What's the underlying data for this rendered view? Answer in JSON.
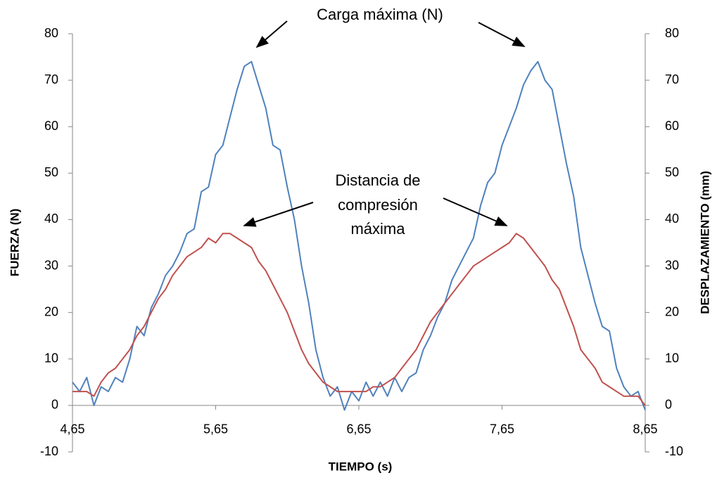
{
  "chart_data": {
    "type": "line",
    "xlabel": "TIEMPO (s)",
    "ylabel": "FUERZA (N)",
    "y2label": "DESPLAZAMIENTO (mm)",
    "annotations": [
      {
        "text": "Carga máxima (N)"
      },
      {
        "lines": [
          "Distancia de",
          "compresión",
          "máxima"
        ]
      }
    ],
    "x": [
      4.65,
      4.7,
      4.75,
      4.8,
      4.85,
      4.9,
      4.95,
      5.0,
      5.05,
      5.1,
      5.15,
      5.2,
      5.25,
      5.3,
      5.35,
      5.4,
      5.45,
      5.5,
      5.55,
      5.6,
      5.65,
      5.7,
      5.75,
      5.8,
      5.85,
      5.9,
      5.95,
      6.0,
      6.05,
      6.1,
      6.15,
      6.2,
      6.25,
      6.3,
      6.35,
      6.4,
      6.45,
      6.5,
      6.55,
      6.6,
      6.65,
      6.7,
      6.75,
      6.8,
      6.85,
      6.9,
      6.95,
      7.0,
      7.05,
      7.1,
      7.15,
      7.2,
      7.25,
      7.3,
      7.35,
      7.4,
      7.45,
      7.5,
      7.55,
      7.6,
      7.65,
      7.7,
      7.75,
      7.8,
      7.85,
      7.9,
      7.95,
      8.0,
      8.05,
      8.1,
      8.15,
      8.2,
      8.25,
      8.3,
      8.35,
      8.4,
      8.45,
      8.5,
      8.55,
      8.6,
      8.65
    ],
    "series": [
      {
        "color": "#4f81bd",
        "values": [
          5,
          3,
          6,
          0,
          4,
          3,
          6,
          5,
          10,
          17,
          15,
          21,
          24,
          28,
          30,
          33,
          37,
          38,
          46,
          47,
          54,
          56,
          62,
          68,
          73,
          74,
          69,
          64,
          56,
          55,
          47,
          40,
          30,
          22,
          12,
          6,
          2,
          4,
          -1,
          3,
          1,
          5,
          2,
          5,
          2,
          6,
          3,
          6,
          7,
          12,
          15,
          19,
          22,
          27,
          30,
          33,
          36,
          43,
          48,
          50,
          56,
          60,
          64,
          69,
          72,
          74,
          70,
          68,
          60,
          52,
          45,
          34,
          28,
          22,
          17,
          16,
          8,
          4,
          2,
          3,
          -1
        ]
      },
      {
        "color": "#c0504d",
        "axis": "y2",
        "values": [
          3,
          3,
          3,
          2,
          5,
          7,
          8,
          10,
          12,
          15,
          17,
          20,
          23,
          25,
          28,
          30,
          32,
          33,
          34,
          36,
          35,
          37,
          37,
          36,
          35,
          34,
          31,
          29,
          26,
          23,
          20,
          16,
          12,
          9,
          7,
          5,
          4,
          3,
          3,
          3,
          3,
          3,
          4,
          4,
          5,
          6,
          8,
          10,
          12,
          15,
          18,
          20,
          22,
          24,
          26,
          28,
          30,
          31,
          32,
          33,
          34,
          35,
          37,
          36,
          34,
          32,
          30,
          27,
          25,
          21,
          17,
          12,
          10,
          8,
          5,
          4,
          3,
          2,
          2,
          2,
          0
        ]
      }
    ],
    "xlim": [
      4.65,
      8.65
    ],
    "xticks": [
      {
        "value": 4.65,
        "label": "4,65"
      },
      {
        "value": 5.65,
        "label": "5,65"
      },
      {
        "value": 6.65,
        "label": "6,65"
      },
      {
        "value": 7.65,
        "label": "7,65"
      },
      {
        "value": 8.65,
        "label": "8,65"
      }
    ],
    "ylim": [
      -10,
      80
    ],
    "yticks": [
      -10,
      0,
      10,
      20,
      30,
      40,
      50,
      60,
      70,
      80
    ],
    "y2lim": [
      -10,
      80
    ],
    "y2ticks": [
      -10,
      0,
      10,
      20,
      30,
      40,
      50,
      60,
      70,
      80
    ],
    "grid": false
  }
}
